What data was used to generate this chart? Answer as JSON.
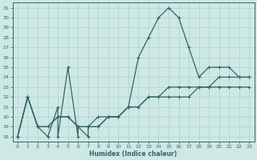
{
  "xlabel": "Humidex (Indice chaleur)",
  "background_color": "#cde8e5",
  "line_color": "#336666",
  "grid_color": "#aed0cc",
  "xlim": [
    -0.5,
    23.5
  ],
  "ylim": [
    17.5,
    31.5
  ],
  "xticks": [
    0,
    1,
    2,
    3,
    4,
    5,
    6,
    7,
    8,
    9,
    10,
    11,
    12,
    13,
    14,
    15,
    16,
    17,
    18,
    19,
    20,
    21,
    22,
    23
  ],
  "yticks": [
    18,
    19,
    20,
    21,
    22,
    23,
    24,
    25,
    26,
    27,
    28,
    29,
    30,
    31
  ],
  "line1_x": [
    0,
    1,
    2,
    3,
    4,
    4,
    5,
    6,
    6,
    7,
    7,
    8,
    9,
    10,
    11,
    12,
    13,
    14,
    15,
    16,
    17,
    18,
    19,
    20,
    21,
    22,
    23
  ],
  "line1_y": [
    18,
    22,
    19,
    18,
    21,
    18,
    25,
    18,
    19,
    18,
    19,
    19,
    20,
    20,
    21,
    26,
    28,
    30,
    31,
    30,
    27,
    24,
    25,
    25,
    25,
    24,
    24
  ],
  "line2_x": [
    0,
    1,
    2,
    3,
    4,
    5,
    6,
    7,
    8,
    9,
    10,
    11,
    12,
    13,
    14,
    15,
    16,
    17,
    18,
    19,
    20,
    21,
    22,
    23
  ],
  "line2_y": [
    18,
    22,
    19,
    19,
    20,
    20,
    19,
    19,
    19,
    20,
    20,
    21,
    21,
    22,
    22,
    22,
    22,
    22,
    23,
    23,
    23,
    23,
    23,
    23
  ],
  "line3_x": [
    0,
    1,
    2,
    3,
    4,
    5,
    6,
    7,
    8,
    9,
    10,
    11,
    12,
    13,
    14,
    15,
    16,
    17,
    18,
    19,
    20,
    21,
    22,
    23
  ],
  "line3_y": [
    18,
    22,
    19,
    19,
    20,
    20,
    19,
    19,
    20,
    20,
    20,
    21,
    21,
    22,
    22,
    23,
    23,
    23,
    23,
    23,
    24,
    24,
    24,
    24
  ]
}
